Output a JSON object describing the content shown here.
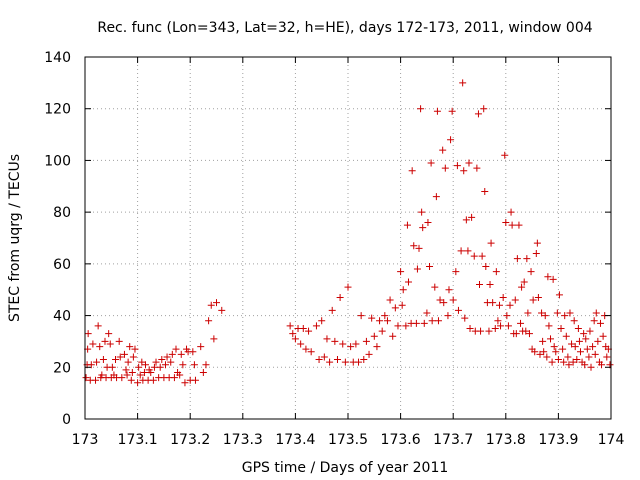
{
  "chart_data": {
    "type": "scatter",
    "title": "Rec. func (Lon=343, Lat=32, h=HE), days 172-173, 2011, window 004",
    "xlabel": "GPS time / Days of year 2011",
    "ylabel": "STEC from uqrg / TECUs",
    "xlim": [
      173,
      174
    ],
    "ylim": [
      0,
      140
    ],
    "x_ticks": [
      173,
      173.1,
      173.2,
      173.3,
      173.4,
      173.5,
      173.6,
      173.7,
      173.8,
      173.9,
      174
    ],
    "x_tick_labels": [
      "173",
      "173.1",
      "173.2",
      "173.3",
      "173.4",
      "173.5",
      "173.6",
      "173.7",
      "173.8",
      "173.9",
      "174"
    ],
    "y_ticks": [
      0,
      20,
      40,
      60,
      80,
      100,
      120,
      140
    ],
    "y_tick_labels": [
      "0",
      "20",
      "40",
      "60",
      "80",
      "100",
      "120",
      "140"
    ],
    "grid": true,
    "marker": "+",
    "marker_color": "#cc0000",
    "series": [
      {
        "points": [
          [
            173.002,
            16
          ],
          [
            173.004,
            21
          ],
          [
            173.005,
            27
          ],
          [
            173.006,
            33
          ],
          [
            173.01,
            15
          ],
          [
            173.012,
            21
          ],
          [
            173.015,
            29
          ],
          [
            173.02,
            15
          ],
          [
            173.022,
            22
          ],
          [
            173.025,
            36
          ],
          [
            173.028,
            28
          ],
          [
            173.03,
            16
          ],
          [
            173.032,
            17
          ],
          [
            173.035,
            23
          ],
          [
            173.038,
            30
          ],
          [
            173.04,
            16
          ],
          [
            173.042,
            20
          ],
          [
            173.045,
            33
          ],
          [
            173.048,
            29
          ],
          [
            173.05,
            16
          ],
          [
            173.052,
            20
          ],
          [
            173.055,
            17
          ],
          [
            173.058,
            23
          ],
          [
            173.06,
            16
          ],
          [
            173.065,
            30
          ],
          [
            173.067,
            24
          ],
          [
            173.07,
            16
          ],
          [
            173.075,
            25
          ],
          [
            173.078,
            19
          ],
          [
            173.08,
            17
          ],
          [
            173.082,
            22
          ],
          [
            173.085,
            28
          ],
          [
            173.088,
            15
          ],
          [
            173.09,
            18
          ],
          [
            173.092,
            24
          ],
          [
            173.095,
            27
          ],
          [
            173.1,
            14
          ],
          [
            173.102,
            20
          ],
          [
            173.105,
            17
          ],
          [
            173.108,
            22
          ],
          [
            173.11,
            15
          ],
          [
            173.113,
            18
          ],
          [
            173.115,
            21
          ],
          [
            173.12,
            15
          ],
          [
            173.122,
            19
          ],
          [
            173.125,
            18
          ],
          [
            173.13,
            15
          ],
          [
            173.132,
            20
          ],
          [
            173.135,
            22
          ],
          [
            173.14,
            16
          ],
          [
            173.143,
            20
          ],
          [
            173.146,
            23
          ],
          [
            173.15,
            16
          ],
          [
            173.153,
            21
          ],
          [
            173.156,
            24
          ],
          [
            173.16,
            16
          ],
          [
            173.163,
            22
          ],
          [
            173.166,
            25
          ],
          [
            173.17,
            16
          ],
          [
            173.173,
            27
          ],
          [
            173.176,
            18
          ],
          [
            173.18,
            17
          ],
          [
            173.183,
            25
          ],
          [
            173.186,
            21
          ],
          [
            173.19,
            14
          ],
          [
            173.193,
            27
          ],
          [
            173.196,
            26
          ],
          [
            173.2,
            15
          ],
          [
            173.205,
            26
          ],
          [
            173.208,
            21
          ],
          [
            173.21,
            15
          ],
          [
            173.22,
            28
          ],
          [
            173.225,
            18
          ],
          [
            173.23,
            21
          ],
          [
            173.235,
            38
          ],
          [
            173.24,
            44
          ],
          [
            173.245,
            31
          ],
          [
            173.25,
            45
          ],
          [
            173.26,
            42
          ],
          [
            173.39,
            36
          ],
          [
            173.395,
            33
          ],
          [
            173.4,
            31
          ],
          [
            173.405,
            35
          ],
          [
            173.41,
            29
          ],
          [
            173.415,
            35
          ],
          [
            173.42,
            27
          ],
          [
            173.425,
            34
          ],
          [
            173.43,
            26
          ],
          [
            173.44,
            36
          ],
          [
            173.445,
            23
          ],
          [
            173.45,
            38
          ],
          [
            173.455,
            24
          ],
          [
            173.46,
            31
          ],
          [
            173.465,
            22
          ],
          [
            173.47,
            42
          ],
          [
            173.475,
            30
          ],
          [
            173.48,
            23
          ],
          [
            173.485,
            47
          ],
          [
            173.49,
            29
          ],
          [
            173.495,
            22
          ],
          [
            173.5,
            51
          ],
          [
            173.505,
            28
          ],
          [
            173.51,
            22
          ],
          [
            173.515,
            29
          ],
          [
            173.52,
            22
          ],
          [
            173.525,
            40
          ],
          [
            173.53,
            23
          ],
          [
            173.535,
            30
          ],
          [
            173.54,
            25
          ],
          [
            173.545,
            39
          ],
          [
            173.55,
            32
          ],
          [
            173.555,
            28
          ],
          [
            173.56,
            38
          ],
          [
            173.565,
            34
          ],
          [
            173.57,
            40
          ],
          [
            173.575,
            38
          ],
          [
            173.58,
            46
          ],
          [
            173.585,
            32
          ],
          [
            173.59,
            43
          ],
          [
            173.595,
            36
          ],
          [
            173.6,
            57
          ],
          [
            173.603,
            44
          ],
          [
            173.605,
            50
          ],
          [
            173.61,
            36
          ],
          [
            173.613,
            75
          ],
          [
            173.615,
            53
          ],
          [
            173.62,
            37
          ],
          [
            173.622,
            96
          ],
          [
            173.625,
            67
          ],
          [
            173.63,
            37
          ],
          [
            173.632,
            58
          ],
          [
            173.635,
            66
          ],
          [
            173.638,
            120
          ],
          [
            173.64,
            80
          ],
          [
            173.642,
            74
          ],
          [
            173.645,
            37
          ],
          [
            173.65,
            41
          ],
          [
            173.652,
            76
          ],
          [
            173.655,
            59
          ],
          [
            173.658,
            99
          ],
          [
            173.66,
            38
          ],
          [
            173.665,
            51
          ],
          [
            173.668,
            86
          ],
          [
            173.67,
            119
          ],
          [
            173.672,
            38
          ],
          [
            173.675,
            46
          ],
          [
            173.68,
            104
          ],
          [
            173.682,
            45
          ],
          [
            173.685,
            97
          ],
          [
            173.69,
            40
          ],
          [
            173.692,
            50
          ],
          [
            173.695,
            108
          ],
          [
            173.698,
            119
          ],
          [
            173.7,
            46
          ],
          [
            173.705,
            57
          ],
          [
            173.708,
            98
          ],
          [
            173.71,
            42
          ],
          [
            173.715,
            65
          ],
          [
            173.718,
            130
          ],
          [
            173.72,
            96
          ],
          [
            173.722,
            39
          ],
          [
            173.725,
            77
          ],
          [
            173.728,
            65
          ],
          [
            173.73,
            99
          ],
          [
            173.732,
            35
          ],
          [
            173.735,
            78
          ],
          [
            173.74,
            63
          ],
          [
            173.742,
            34
          ],
          [
            173.745,
            97
          ],
          [
            173.748,
            118
          ],
          [
            173.75,
            52
          ],
          [
            173.752,
            34
          ],
          [
            173.755,
            63
          ],
          [
            173.758,
            120
          ],
          [
            173.76,
            88
          ],
          [
            173.762,
            59
          ],
          [
            173.765,
            45
          ],
          [
            173.768,
            34
          ],
          [
            173.77,
            52
          ],
          [
            173.772,
            68
          ],
          [
            173.775,
            45
          ],
          [
            173.78,
            35
          ],
          [
            173.782,
            57
          ],
          [
            173.785,
            38
          ],
          [
            173.788,
            44
          ],
          [
            173.79,
            36
          ],
          [
            173.795,
            47
          ],
          [
            173.798,
            102
          ],
          [
            173.8,
            76
          ],
          [
            173.802,
            40
          ],
          [
            173.805,
            36
          ],
          [
            173.808,
            44
          ],
          [
            173.81,
            80
          ],
          [
            173.812,
            75
          ],
          [
            173.815,
            33
          ],
          [
            173.818,
            46
          ],
          [
            173.82,
            33
          ],
          [
            173.822,
            62
          ],
          [
            173.825,
            75
          ],
          [
            173.828,
            37
          ],
          [
            173.83,
            51
          ],
          [
            173.832,
            34
          ],
          [
            173.835,
            53
          ],
          [
            173.838,
            34
          ],
          [
            173.84,
            62
          ],
          [
            173.842,
            41
          ],
          [
            173.845,
            33
          ],
          [
            173.848,
            57
          ],
          [
            173.85,
            27
          ],
          [
            173.852,
            46
          ],
          [
            173.855,
            26
          ],
          [
            173.858,
            64
          ],
          [
            173.86,
            68
          ],
          [
            173.862,
            47
          ],
          [
            173.865,
            25
          ],
          [
            173.868,
            41
          ],
          [
            173.87,
            30
          ],
          [
            173.872,
            26
          ],
          [
            173.875,
            40
          ],
          [
            173.878,
            24
          ],
          [
            173.88,
            55
          ],
          [
            173.882,
            36
          ],
          [
            173.885,
            31
          ],
          [
            173.888,
            22
          ],
          [
            173.89,
            54
          ],
          [
            173.892,
            28
          ],
          [
            173.895,
            26
          ],
          [
            173.898,
            41
          ],
          [
            173.9,
            23
          ],
          [
            173.902,
            48
          ],
          [
            173.905,
            35
          ],
          [
            173.908,
            27
          ],
          [
            173.91,
            22
          ],
          [
            173.912,
            40
          ],
          [
            173.915,
            32
          ],
          [
            173.918,
            24
          ],
          [
            173.92,
            21
          ],
          [
            173.922,
            41
          ],
          [
            173.925,
            29
          ],
          [
            173.928,
            22
          ],
          [
            173.93,
            38
          ],
          [
            173.932,
            28
          ],
          [
            173.935,
            23
          ],
          [
            173.938,
            35
          ],
          [
            173.94,
            30
          ],
          [
            173.942,
            26
          ],
          [
            173.945,
            22
          ],
          [
            173.948,
            33
          ],
          [
            173.95,
            21
          ],
          [
            173.952,
            31
          ],
          [
            173.955,
            27
          ],
          [
            173.958,
            24
          ],
          [
            173.96,
            34
          ],
          [
            173.962,
            20
          ],
          [
            173.965,
            28
          ],
          [
            173.968,
            38
          ],
          [
            173.97,
            25
          ],
          [
            173.972,
            41
          ],
          [
            173.975,
            30
          ],
          [
            173.978,
            22
          ],
          [
            173.98,
            37
          ],
          [
            173.982,
            21
          ],
          [
            173.985,
            32
          ],
          [
            173.988,
            40
          ],
          [
            173.99,
            28
          ],
          [
            173.992,
            24
          ],
          [
            173.995,
            27
          ],
          [
            173.998,
            21
          ]
        ]
      }
    ]
  }
}
